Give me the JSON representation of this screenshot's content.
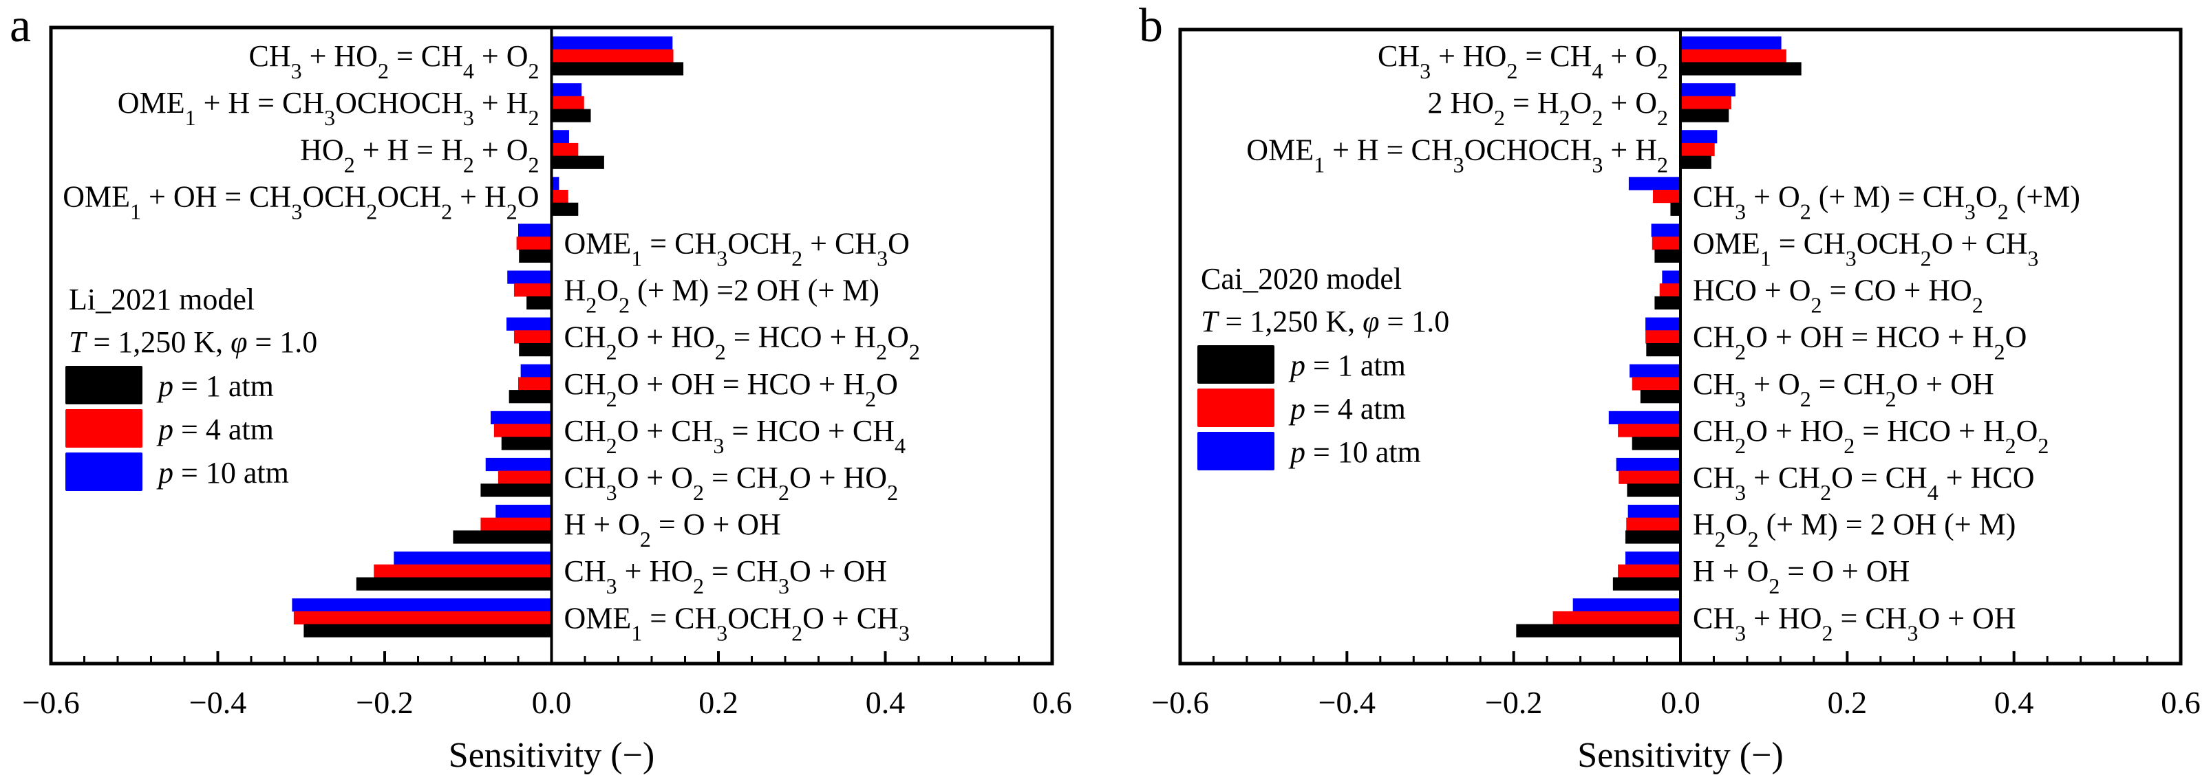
{
  "chart_data": [
    {
      "type": "bar",
      "orientation": "horizontal",
      "panel_label": "a",
      "model_label": "Li_2021 model",
      "conditions": {
        "T_symbol": "T",
        "T_text": " = 1,250 K, ",
        "phi_symbol": "φ",
        "phi_text": " = 1.0"
      },
      "xlabel": "Sensitivity (−)",
      "xlim": [
        -0.6,
        0.6
      ],
      "xticks": [
        "−0.6",
        "−0.4",
        "−0.2",
        "0.0",
        "0.2",
        "0.4",
        "0.6"
      ],
      "xtick_values": [
        -0.6,
        -0.4,
        -0.2,
        0.0,
        0.2,
        0.4,
        0.6
      ],
      "minor_ticks_per_major": 4,
      "legend_position": "center-left",
      "categories": [
        [
          [
            "CH"
          ],
          [
            "3",
            "sub"
          ],
          [
            " + HO"
          ],
          [
            "2",
            "sub"
          ],
          [
            " = CH"
          ],
          [
            "4",
            "sub"
          ],
          [
            " + O"
          ],
          [
            "2",
            "sub"
          ]
        ],
        [
          [
            "OME"
          ],
          [
            "1",
            "sub"
          ],
          [
            " + H = CH"
          ],
          [
            "3",
            "sub"
          ],
          [
            "OCHOCH"
          ],
          [
            "3",
            "sub"
          ],
          [
            " + H"
          ],
          [
            "2",
            "sub"
          ]
        ],
        [
          [
            "HO"
          ],
          [
            "2",
            "sub"
          ],
          [
            " + H = H"
          ],
          [
            "2",
            "sub"
          ],
          [
            " + O"
          ],
          [
            "2",
            "sub"
          ]
        ],
        [
          [
            "OME"
          ],
          [
            "1",
            "sub"
          ],
          [
            " + OH = CH"
          ],
          [
            "3",
            "sub"
          ],
          [
            "OCH"
          ],
          [
            "2",
            "sub"
          ],
          [
            "OCH"
          ],
          [
            "2",
            "sub"
          ],
          [
            " + H"
          ],
          [
            "2",
            "sub"
          ],
          [
            "O"
          ]
        ],
        [
          [
            "OME"
          ],
          [
            "1",
            "sub"
          ],
          [
            " =  CH"
          ],
          [
            "3",
            "sub"
          ],
          [
            "OCH"
          ],
          [
            "2",
            "sub"
          ],
          [
            " + CH"
          ],
          [
            "3",
            "sub"
          ],
          [
            "O"
          ]
        ],
        [
          [
            "H"
          ],
          [
            "2",
            "sub"
          ],
          [
            "O"
          ],
          [
            "2",
            "sub"
          ],
          [
            " (+ M) =2 OH (+ M)"
          ]
        ],
        [
          [
            "CH"
          ],
          [
            "2",
            "sub"
          ],
          [
            "O + HO"
          ],
          [
            "2",
            "sub"
          ],
          [
            " = HCO + H"
          ],
          [
            "2",
            "sub"
          ],
          [
            "O"
          ],
          [
            "2",
            "sub"
          ]
        ],
        [
          [
            "CH"
          ],
          [
            "2",
            "sub"
          ],
          [
            "O + OH = HCO + H"
          ],
          [
            "2",
            "sub"
          ],
          [
            "O"
          ]
        ],
        [
          [
            "CH"
          ],
          [
            "2",
            "sub"
          ],
          [
            "O + CH"
          ],
          [
            "3",
            "sub"
          ],
          [
            " = HCO + CH"
          ],
          [
            "4",
            "sub"
          ]
        ],
        [
          [
            "CH"
          ],
          [
            "3",
            "sub"
          ],
          [
            "O + O"
          ],
          [
            "2",
            "sub"
          ],
          [
            " = CH"
          ],
          [
            "2",
            "sub"
          ],
          [
            "O + HO"
          ],
          [
            "2",
            "sub"
          ]
        ],
        [
          [
            "H + O"
          ],
          [
            "2",
            "sub"
          ],
          [
            " = O + OH"
          ]
        ],
        [
          [
            "CH"
          ],
          [
            "3",
            "sub"
          ],
          [
            " + HO"
          ],
          [
            "2",
            "sub"
          ],
          [
            " = CH"
          ],
          [
            "3",
            "sub"
          ],
          [
            "O + OH"
          ]
        ],
        [
          [
            "OME"
          ],
          [
            "1",
            "sub"
          ],
          [
            " = CH"
          ],
          [
            "3",
            "sub"
          ],
          [
            "OCH"
          ],
          [
            "2",
            "sub"
          ],
          [
            "O + CH"
          ],
          [
            "3",
            "sub"
          ]
        ]
      ],
      "category_text": [
        "CH3 + HO2 = CH4 + O2",
        "OME1 + H = CH3OCHOCH3 + H2",
        "HO2 + H = H2 + O2",
        "OME1 + OH = CH3OCH2OCH2 + H2O",
        "OME1 = CH3OCH2 + CH3O",
        "H2O2 (+ M) =2 OH (+ M)",
        "CH2O + HO2 = HCO + H2O2",
        "CH2O + OH = HCO + H2O",
        "CH2O + CH3 = HCO + CH4",
        "CH3O + O2 = CH2O + HO2",
        "H + O2 = O + OH",
        "CH3 + HO2 = CH3O + OH",
        "OME1 = CH3OCH2O + CH3"
      ],
      "series": [
        {
          "name": "p = 10 atm",
          "p_value": "10",
          "color": "#0000ff",
          "values": [
            0.145,
            0.036,
            0.021,
            0.009,
            -0.04,
            -0.053,
            -0.054,
            -0.037,
            -0.073,
            -0.079,
            -0.067,
            -0.189,
            -0.311
          ]
        },
        {
          "name": "p = 4 atm",
          "p_value": "4",
          "color": "#ff0000",
          "values": [
            0.146,
            0.039,
            0.032,
            0.02,
            -0.042,
            -0.045,
            -0.045,
            -0.04,
            -0.069,
            -0.064,
            -0.085,
            -0.213,
            -0.309
          ]
        },
        {
          "name": "p = 1 atm",
          "p_value": "1",
          "color": "#000000",
          "values": [
            0.158,
            0.047,
            0.063,
            0.032,
            -0.039,
            -0.03,
            -0.039,
            -0.051,
            -0.06,
            -0.085,
            -0.118,
            -0.234,
            -0.297
          ]
        }
      ]
    },
    {
      "type": "bar",
      "orientation": "horizontal",
      "panel_label": "b",
      "model_label": "Cai_2020 model",
      "conditions": {
        "T_symbol": "T",
        "T_text": " = 1,250 K, ",
        "phi_symbol": "φ",
        "phi_text": " = 1.0"
      },
      "xlabel": "Sensitivity (−)",
      "xlim": [
        -0.6,
        0.6
      ],
      "xticks": [
        "−0.6",
        "−0.4",
        "−0.2",
        "0.0",
        "0.2",
        "0.4",
        "0.6"
      ],
      "xtick_values": [
        -0.6,
        -0.4,
        -0.2,
        0.0,
        0.2,
        0.4,
        0.6
      ],
      "minor_ticks_per_major": 4,
      "legend_position": "center-left",
      "categories": [
        [
          [
            "CH"
          ],
          [
            "3",
            "sub"
          ],
          [
            " + HO"
          ],
          [
            "2",
            "sub"
          ],
          [
            " = CH"
          ],
          [
            "4",
            "sub"
          ],
          [
            " + O"
          ],
          [
            "2",
            "sub"
          ]
        ],
        [
          [
            "2 HO"
          ],
          [
            "2",
            "sub"
          ],
          [
            " = H"
          ],
          [
            "2",
            "sub"
          ],
          [
            "O"
          ],
          [
            "2",
            "sub"
          ],
          [
            " + O"
          ],
          [
            "2",
            "sub"
          ]
        ],
        [
          [
            "OME"
          ],
          [
            "1",
            "sub"
          ],
          [
            " + H = CH"
          ],
          [
            "3",
            "sub"
          ],
          [
            "OCHOCH"
          ],
          [
            "3",
            "sub"
          ],
          [
            " + H"
          ],
          [
            "2",
            "sub"
          ]
        ],
        [
          [
            "CH"
          ],
          [
            "3",
            "sub"
          ],
          [
            " + O"
          ],
          [
            "2",
            "sub"
          ],
          [
            " (+ M) = CH"
          ],
          [
            "3",
            "sub"
          ],
          [
            "O"
          ],
          [
            "2",
            "sub"
          ],
          [
            " (+M)"
          ]
        ],
        [
          [
            "OME"
          ],
          [
            "1",
            "sub"
          ],
          [
            " = CH"
          ],
          [
            "3",
            "sub"
          ],
          [
            "OCH"
          ],
          [
            "2",
            "sub"
          ],
          [
            "O + CH"
          ],
          [
            "3",
            "sub"
          ]
        ],
        [
          [
            "HCO + O"
          ],
          [
            "2",
            "sub"
          ],
          [
            " = CO + HO"
          ],
          [
            "2",
            "sub"
          ]
        ],
        [
          [
            "CH"
          ],
          [
            "2",
            "sub"
          ],
          [
            "O + OH = HCO + H"
          ],
          [
            "2",
            "sub"
          ],
          [
            "O"
          ]
        ],
        [
          [
            "CH"
          ],
          [
            "3",
            "sub"
          ],
          [
            " + O"
          ],
          [
            "2",
            "sub"
          ],
          [
            " = CH"
          ],
          [
            "2",
            "sub"
          ],
          [
            "O + OH"
          ]
        ],
        [
          [
            "CH"
          ],
          [
            "2",
            "sub"
          ],
          [
            "O + HO"
          ],
          [
            "2",
            "sub"
          ],
          [
            " = HCO + H"
          ],
          [
            "2",
            "sub"
          ],
          [
            "O"
          ],
          [
            "2",
            "sub"
          ]
        ],
        [
          [
            "CH"
          ],
          [
            "3",
            "sub"
          ],
          [
            " + CH"
          ],
          [
            "2",
            "sub"
          ],
          [
            "O = CH"
          ],
          [
            "4",
            "sub"
          ],
          [
            " + HCO"
          ]
        ],
        [
          [
            "H"
          ],
          [
            "2",
            "sub"
          ],
          [
            "O"
          ],
          [
            "2",
            "sub"
          ],
          [
            " (+ M) = 2 OH (+ M)"
          ]
        ],
        [
          [
            "H + O"
          ],
          [
            "2",
            "sub"
          ],
          [
            " = O + OH"
          ]
        ],
        [
          [
            "CH"
          ],
          [
            "3",
            "sub"
          ],
          [
            " + HO"
          ],
          [
            "2",
            "sub"
          ],
          [
            " = CH"
          ],
          [
            "3",
            "sub"
          ],
          [
            "O + OH"
          ]
        ]
      ],
      "category_text": [
        "CH3 + HO2 = CH4 + O2",
        "2 HO2 = H2O2 + O2",
        "OME1 + H = CH3OCHOCH3 + H2",
        "CH3 + O2 (+ M) = CH3O2 (+M)",
        "OME1 = CH3OCH2O + CH3",
        "HCO + O2 = CO + HO2",
        "CH2O + OH = HCO + H2O",
        "CH3 + O2 = CH2O + OH",
        "CH2O + HO2 = HCO + H2O2",
        "CH3 + CH2O = CH4 + HCO",
        "H2O2 (+ M) = 2 OH (+ M)",
        "H + O2 = O + OH",
        "CH3 + HO2 = CH3O + OH"
      ],
      "series": [
        {
          "name": "p = 10 atm",
          "p_value": "10",
          "color": "#0000ff",
          "values": [
            0.121,
            0.066,
            0.044,
            -0.062,
            -0.035,
            -0.022,
            -0.042,
            -0.061,
            -0.086,
            -0.077,
            -0.063,
            -0.066,
            -0.129
          ]
        },
        {
          "name": "p = 4 atm",
          "p_value": "4",
          "color": "#ff0000",
          "values": [
            0.127,
            0.061,
            0.041,
            -0.033,
            -0.034,
            -0.025,
            -0.042,
            -0.058,
            -0.075,
            -0.074,
            -0.065,
            -0.075,
            -0.153
          ]
        },
        {
          "name": "p = 1 atm",
          "p_value": "1",
          "color": "#000000",
          "values": [
            0.145,
            0.058,
            0.037,
            -0.012,
            -0.031,
            -0.031,
            -0.041,
            -0.048,
            -0.058,
            -0.064,
            -0.066,
            -0.081,
            -0.197
          ]
        }
      ]
    }
  ]
}
